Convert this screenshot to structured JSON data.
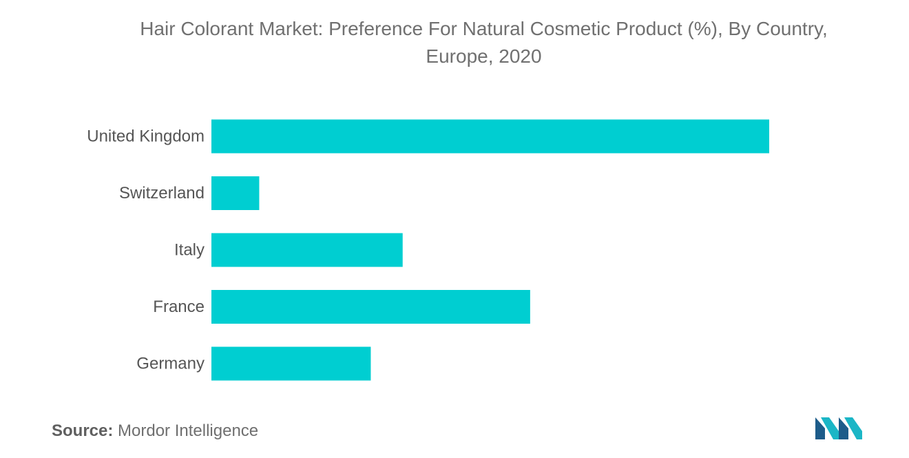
{
  "header": {
    "title_line1": "Hair Colorant Market: Preference For Natural Cosmetic Product (%), By Country,",
    "title_line2": "Europe, 2020"
  },
  "chart_data": {
    "type": "bar",
    "orientation": "horizontal",
    "title": "Hair Colorant Market: Preference For Natural Cosmetic Product (%), By Country, Europe, 2020",
    "categories": [
      "United Kingdom",
      "Switzerland",
      "Italy",
      "France",
      "Germany"
    ],
    "values": [
      70,
      6,
      24,
      40,
      20
    ],
    "xlim": [
      0,
      70
    ],
    "xlabel": "",
    "ylabel": "",
    "grid": false,
    "legend": "none",
    "bar_color": "#00CED1"
  },
  "footer": {
    "source_label": "Source:",
    "source_value": "Mordor Intelligence"
  },
  "logo": {
    "icon": "mordor-intelligence-logo-icon",
    "colors": [
      "#1d5c8a",
      "#1bb6c6"
    ]
  }
}
